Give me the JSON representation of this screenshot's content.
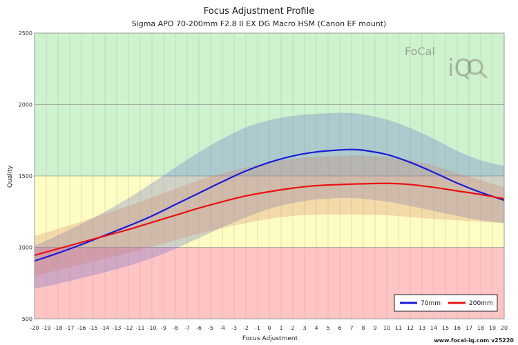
{
  "chart_data": {
    "type": "line",
    "title": "Focus Adjustment Profile",
    "subtitle": "Sigma APO 70-200mm F2.8 II EX DG Macro HSM (Canon EF mount)",
    "xlabel": "Focus Adjustment",
    "ylabel": "Quality",
    "xlim": [
      -20,
      20
    ],
    "ylim": [
      500,
      2500
    ],
    "x_ticks": [
      -20,
      -19,
      -18,
      -17,
      -16,
      -15,
      -14,
      -13,
      -12,
      -11,
      -10,
      -9,
      -8,
      -7,
      -6,
      -5,
      -4,
      -3,
      -2,
      -1,
      0,
      1,
      2,
      3,
      4,
      5,
      6,
      7,
      8,
      9,
      10,
      11,
      12,
      13,
      14,
      15,
      16,
      17,
      18,
      19,
      20
    ],
    "y_ticks": [
      500,
      1000,
      1500,
      2000,
      2500
    ],
    "grid": true,
    "legend_position": "bottom-right",
    "zones": [
      {
        "from": 500,
        "to": 1000,
        "color": "#ffc4c4"
      },
      {
        "from": 1000,
        "to": 1500,
        "color": "#fdfcc2"
      },
      {
        "from": 1500,
        "to": 2500,
        "color": "#cdf2cd"
      }
    ],
    "x": [
      -20,
      -18,
      -16,
      -14,
      -12,
      -10,
      -8,
      -6,
      -4,
      -2,
      0,
      2,
      4,
      6,
      7,
      8,
      10,
      12,
      14,
      16,
      18,
      20
    ],
    "series": [
      {
        "name": "70mm",
        "color": "#1a1ad8",
        "values": [
          905,
          960,
          1020,
          1085,
          1150,
          1220,
          1300,
          1380,
          1460,
          1535,
          1595,
          1640,
          1668,
          1682,
          1685,
          1680,
          1650,
          1595,
          1525,
          1450,
          1385,
          1330
        ],
        "band_upper": [
          1010,
          1085,
          1165,
          1250,
          1345,
          1450,
          1560,
          1665,
          1760,
          1840,
          1890,
          1920,
          1935,
          1942,
          1940,
          1930,
          1895,
          1835,
          1760,
          1675,
          1610,
          1570
        ],
        "band_lower": [
          710,
          745,
          785,
          825,
          870,
          925,
          990,
          1065,
          1140,
          1210,
          1270,
          1310,
          1335,
          1345,
          1345,
          1340,
          1320,
          1290,
          1255,
          1220,
          1190,
          1170
        ]
      },
      {
        "name": "200mm",
        "color": "#e81010",
        "values": [
          945,
          990,
          1035,
          1080,
          1125,
          1175,
          1225,
          1275,
          1320,
          1360,
          1390,
          1415,
          1432,
          1440,
          1443,
          1445,
          1448,
          1440,
          1420,
          1395,
          1370,
          1340
        ],
        "band_upper": [
          1080,
          1130,
          1180,
          1235,
          1290,
          1350,
          1410,
          1470,
          1520,
          1560,
          1595,
          1620,
          1635,
          1640,
          1643,
          1642,
          1632,
          1610,
          1572,
          1520,
          1470,
          1420
        ],
        "band_lower": [
          800,
          840,
          880,
          920,
          960,
          1005,
          1050,
          1095,
          1135,
          1170,
          1200,
          1220,
          1228,
          1230,
          1230,
          1228,
          1225,
          1212,
          1200,
          1190,
          1180,
          1170
        ]
      }
    ]
  },
  "branding": {
    "logo_text_top": "FoCal",
    "logo_text_bottom": "iQ",
    "footer": "www.focal-iq.com  v25220"
  }
}
